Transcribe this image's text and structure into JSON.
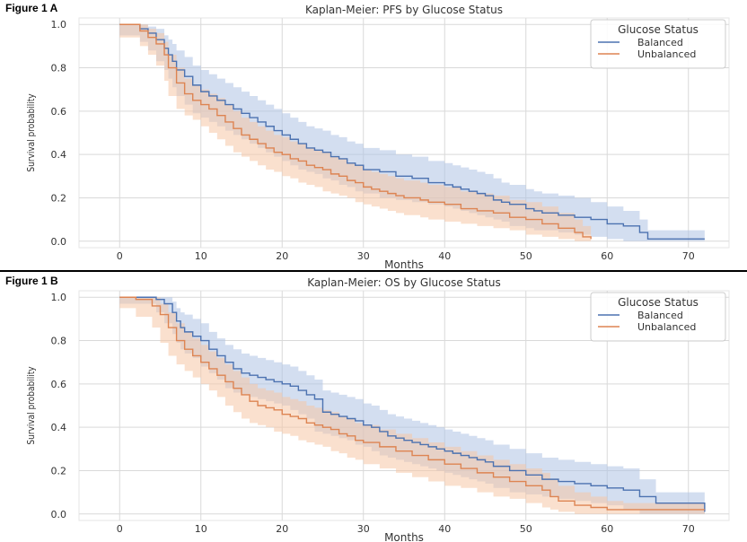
{
  "figures": [
    {
      "label": "Figure 1 A"
    },
    {
      "label": "Figure 1 B"
    }
  ],
  "colors": {
    "balanced": "#4c72b0",
    "unbalanced": "#dd8452",
    "balanced_ci": "#aec3e4",
    "unbalanced_ci": "#f6c7a6",
    "grid": "#d9d9d9",
    "axis_text": "#333333"
  },
  "chart_data": [
    {
      "type": "line",
      "title": "Kaplan-Meier: PFS by Glucose Status",
      "xlabel": "Months",
      "ylabel": "Survival probability",
      "xlim": [
        -5,
        75
      ],
      "ylim": [
        -0.03,
        1.03
      ],
      "xticks": [
        0,
        10,
        20,
        30,
        40,
        50,
        60,
        70
      ],
      "yticks": [
        0.0,
        0.2,
        0.4,
        0.6,
        0.8,
        1.0
      ],
      "grid": true,
      "legend": {
        "title": "Glucose Status",
        "position": "top-right"
      },
      "series": [
        {
          "name": "Balanced",
          "color_key": "balanced",
          "x": [
            0,
            2.5,
            3.5,
            4.5,
            5.5,
            6,
            6.5,
            7,
            8,
            9,
            10,
            11,
            12,
            13,
            14,
            15,
            16,
            17,
            18,
            19,
            20,
            21,
            22,
            23,
            24,
            25,
            26,
            27,
            28,
            29,
            30,
            32,
            34,
            36,
            38,
            40,
            41,
            42,
            43,
            44,
            45,
            46,
            47,
            48,
            50,
            51,
            52,
            54,
            56,
            58,
            60,
            62,
            64,
            65,
            72
          ],
          "y": [
            1.0,
            0.98,
            0.96,
            0.93,
            0.89,
            0.86,
            0.83,
            0.79,
            0.76,
            0.72,
            0.69,
            0.67,
            0.65,
            0.63,
            0.61,
            0.59,
            0.57,
            0.55,
            0.53,
            0.51,
            0.49,
            0.47,
            0.45,
            0.43,
            0.42,
            0.41,
            0.39,
            0.38,
            0.36,
            0.35,
            0.33,
            0.32,
            0.3,
            0.29,
            0.27,
            0.26,
            0.25,
            0.24,
            0.23,
            0.22,
            0.21,
            0.19,
            0.18,
            0.17,
            0.15,
            0.14,
            0.13,
            0.12,
            0.11,
            0.1,
            0.08,
            0.07,
            0.04,
            0.01,
            0.01
          ],
          "ci_low": [
            1.0,
            0.95,
            0.92,
            0.88,
            0.83,
            0.79,
            0.75,
            0.71,
            0.67,
            0.63,
            0.59,
            0.57,
            0.55,
            0.53,
            0.51,
            0.49,
            0.47,
            0.45,
            0.43,
            0.41,
            0.39,
            0.37,
            0.35,
            0.33,
            0.32,
            0.31,
            0.29,
            0.28,
            0.26,
            0.25,
            0.23,
            0.22,
            0.2,
            0.19,
            0.18,
            0.17,
            0.16,
            0.15,
            0.14,
            0.13,
            0.12,
            0.11,
            0.1,
            0.09,
            0.07,
            0.06,
            0.05,
            0.05,
            0.04,
            0.03,
            0.02,
            0.01,
            0.0,
            0.0,
            0.0
          ],
          "ci_high": [
            1.0,
            1.0,
            0.99,
            0.98,
            0.95,
            0.93,
            0.91,
            0.88,
            0.85,
            0.81,
            0.79,
            0.77,
            0.75,
            0.73,
            0.71,
            0.69,
            0.67,
            0.65,
            0.63,
            0.61,
            0.59,
            0.57,
            0.55,
            0.53,
            0.52,
            0.51,
            0.49,
            0.48,
            0.46,
            0.45,
            0.43,
            0.42,
            0.4,
            0.39,
            0.37,
            0.36,
            0.35,
            0.34,
            0.33,
            0.32,
            0.31,
            0.29,
            0.27,
            0.26,
            0.24,
            0.23,
            0.22,
            0.21,
            0.2,
            0.18,
            0.16,
            0.14,
            0.1,
            0.05,
            0.05
          ]
        },
        {
          "name": "Unbalanced",
          "color_key": "unbalanced",
          "x": [
            0,
            2.5,
            3.5,
            4.5,
            5.5,
            6,
            7,
            8,
            9,
            10,
            11,
            12,
            13,
            14,
            15,
            16,
            17,
            18,
            19,
            20,
            21,
            22,
            23,
            24,
            25,
            26,
            27,
            28,
            29,
            30,
            31,
            32,
            33,
            34,
            35,
            37,
            38,
            40,
            42,
            44,
            46,
            48,
            50,
            52,
            54,
            56,
            57,
            58
          ],
          "y": [
            1.0,
            0.97,
            0.94,
            0.91,
            0.86,
            0.8,
            0.73,
            0.68,
            0.65,
            0.63,
            0.61,
            0.58,
            0.55,
            0.52,
            0.49,
            0.47,
            0.45,
            0.43,
            0.41,
            0.4,
            0.38,
            0.37,
            0.35,
            0.34,
            0.33,
            0.31,
            0.3,
            0.28,
            0.27,
            0.25,
            0.24,
            0.23,
            0.22,
            0.21,
            0.2,
            0.19,
            0.18,
            0.17,
            0.15,
            0.14,
            0.13,
            0.11,
            0.1,
            0.08,
            0.06,
            0.04,
            0.02,
            0.01
          ],
          "ci_low": [
            1.0,
            0.94,
            0.9,
            0.86,
            0.81,
            0.74,
            0.67,
            0.61,
            0.58,
            0.56,
            0.53,
            0.5,
            0.47,
            0.44,
            0.41,
            0.39,
            0.37,
            0.35,
            0.33,
            0.32,
            0.3,
            0.29,
            0.27,
            0.26,
            0.25,
            0.23,
            0.22,
            0.21,
            0.2,
            0.18,
            0.17,
            0.16,
            0.15,
            0.14,
            0.13,
            0.12,
            0.11,
            0.1,
            0.09,
            0.08,
            0.07,
            0.06,
            0.05,
            0.03,
            0.02,
            0.01,
            0.0,
            0.0
          ],
          "ci_high": [
            1.0,
            1.0,
            0.98,
            0.96,
            0.92,
            0.86,
            0.8,
            0.75,
            0.72,
            0.7,
            0.68,
            0.66,
            0.63,
            0.6,
            0.57,
            0.55,
            0.53,
            0.51,
            0.49,
            0.48,
            0.46,
            0.45,
            0.43,
            0.42,
            0.41,
            0.39,
            0.38,
            0.36,
            0.35,
            0.33,
            0.32,
            0.31,
            0.3,
            0.29,
            0.28,
            0.27,
            0.26,
            0.25,
            0.23,
            0.22,
            0.21,
            0.19,
            0.18,
            0.16,
            0.13,
            0.1,
            0.07,
            0.05
          ]
        }
      ]
    },
    {
      "type": "line",
      "title": "Kaplan-Meier: OS by Glucose Status",
      "xlabel": "Months",
      "ylabel": "Survival probability",
      "xlim": [
        -5,
        75
      ],
      "ylim": [
        -0.03,
        1.03
      ],
      "xticks": [
        0,
        10,
        20,
        30,
        40,
        50,
        60,
        70
      ],
      "yticks": [
        0.0,
        0.2,
        0.4,
        0.6,
        0.8,
        1.0
      ],
      "grid": true,
      "legend": {
        "title": "Glucose Status",
        "position": "top-right"
      },
      "series": [
        {
          "name": "Balanced",
          "color_key": "balanced",
          "x": [
            0,
            4.5,
            5.5,
            6.5,
            7,
            7.5,
            8,
            9,
            10,
            11,
            12,
            13,
            14,
            15,
            16,
            17,
            18,
            19,
            20,
            21,
            22,
            23,
            24,
            25,
            26,
            27,
            28,
            29,
            30,
            31,
            32,
            33,
            34,
            35,
            36,
            37,
            38,
            39,
            40,
            41,
            42,
            43,
            44,
            45,
            46,
            48,
            50,
            52,
            54,
            56,
            58,
            60,
            62,
            64,
            66,
            72
          ],
          "y": [
            1.0,
            0.99,
            0.97,
            0.93,
            0.89,
            0.86,
            0.84,
            0.82,
            0.8,
            0.76,
            0.73,
            0.7,
            0.67,
            0.65,
            0.64,
            0.63,
            0.62,
            0.61,
            0.6,
            0.59,
            0.57,
            0.55,
            0.53,
            0.47,
            0.46,
            0.45,
            0.44,
            0.43,
            0.41,
            0.4,
            0.38,
            0.36,
            0.35,
            0.34,
            0.33,
            0.32,
            0.31,
            0.3,
            0.29,
            0.28,
            0.27,
            0.26,
            0.25,
            0.24,
            0.22,
            0.2,
            0.18,
            0.16,
            0.15,
            0.14,
            0.13,
            0.12,
            0.11,
            0.08,
            0.05,
            0.01
          ],
          "ci_low": [
            1.0,
            0.97,
            0.93,
            0.88,
            0.83,
            0.79,
            0.76,
            0.74,
            0.72,
            0.68,
            0.65,
            0.62,
            0.58,
            0.56,
            0.55,
            0.54,
            0.53,
            0.52,
            0.51,
            0.5,
            0.48,
            0.46,
            0.44,
            0.38,
            0.37,
            0.36,
            0.35,
            0.34,
            0.32,
            0.31,
            0.29,
            0.27,
            0.26,
            0.25,
            0.24,
            0.23,
            0.22,
            0.21,
            0.2,
            0.19,
            0.18,
            0.17,
            0.16,
            0.15,
            0.14,
            0.12,
            0.1,
            0.09,
            0.08,
            0.07,
            0.06,
            0.05,
            0.04,
            0.02,
            0.0,
            0.0
          ],
          "ci_high": [
            1.0,
            1.0,
            1.0,
            0.98,
            0.95,
            0.93,
            0.92,
            0.9,
            0.88,
            0.84,
            0.81,
            0.78,
            0.76,
            0.74,
            0.73,
            0.72,
            0.71,
            0.7,
            0.69,
            0.68,
            0.66,
            0.64,
            0.62,
            0.57,
            0.56,
            0.55,
            0.54,
            0.53,
            0.51,
            0.5,
            0.48,
            0.46,
            0.45,
            0.44,
            0.43,
            0.42,
            0.41,
            0.4,
            0.39,
            0.38,
            0.37,
            0.36,
            0.35,
            0.34,
            0.32,
            0.3,
            0.28,
            0.26,
            0.25,
            0.24,
            0.23,
            0.22,
            0.21,
            0.16,
            0.1,
            0.05
          ]
        },
        {
          "name": "Unbalanced",
          "color_key": "unbalanced",
          "x": [
            0,
            2,
            4,
            5,
            6,
            7,
            8,
            9,
            10,
            11,
            12,
            13,
            14,
            15,
            16,
            17,
            18,
            19,
            20,
            21,
            22,
            23,
            24,
            25,
            26,
            27,
            28,
            29,
            30,
            32,
            34,
            36,
            38,
            40,
            42,
            44,
            46,
            48,
            50,
            52,
            53,
            54,
            56,
            58,
            60,
            62,
            66,
            72
          ],
          "y": [
            1.0,
            0.99,
            0.96,
            0.92,
            0.86,
            0.8,
            0.76,
            0.73,
            0.7,
            0.67,
            0.64,
            0.61,
            0.58,
            0.55,
            0.52,
            0.5,
            0.49,
            0.48,
            0.46,
            0.45,
            0.44,
            0.42,
            0.41,
            0.4,
            0.39,
            0.37,
            0.36,
            0.34,
            0.33,
            0.31,
            0.29,
            0.27,
            0.25,
            0.23,
            0.21,
            0.19,
            0.17,
            0.15,
            0.13,
            0.11,
            0.08,
            0.06,
            0.04,
            0.03,
            0.02,
            0.02,
            0.02,
            0.02
          ],
          "ci_low": [
            1.0,
            0.95,
            0.91,
            0.86,
            0.79,
            0.73,
            0.69,
            0.66,
            0.63,
            0.6,
            0.57,
            0.54,
            0.5,
            0.47,
            0.44,
            0.42,
            0.41,
            0.4,
            0.38,
            0.37,
            0.36,
            0.34,
            0.33,
            0.32,
            0.31,
            0.29,
            0.28,
            0.26,
            0.25,
            0.23,
            0.21,
            0.19,
            0.17,
            0.15,
            0.13,
            0.12,
            0.1,
            0.08,
            0.07,
            0.05,
            0.03,
            0.02,
            0.01,
            0.0,
            0.0,
            0.0,
            0.0,
            0.0
          ],
          "ci_high": [
            1.0,
            1.0,
            1.0,
            0.97,
            0.93,
            0.88,
            0.84,
            0.81,
            0.78,
            0.75,
            0.72,
            0.69,
            0.66,
            0.63,
            0.6,
            0.58,
            0.57,
            0.56,
            0.54,
            0.53,
            0.52,
            0.5,
            0.49,
            0.48,
            0.47,
            0.45,
            0.44,
            0.42,
            0.41,
            0.39,
            0.37,
            0.35,
            0.33,
            0.31,
            0.29,
            0.27,
            0.25,
            0.23,
            0.21,
            0.19,
            0.16,
            0.13,
            0.1,
            0.08,
            0.06,
            0.05,
            0.05,
            0.05
          ]
        }
      ]
    }
  ]
}
